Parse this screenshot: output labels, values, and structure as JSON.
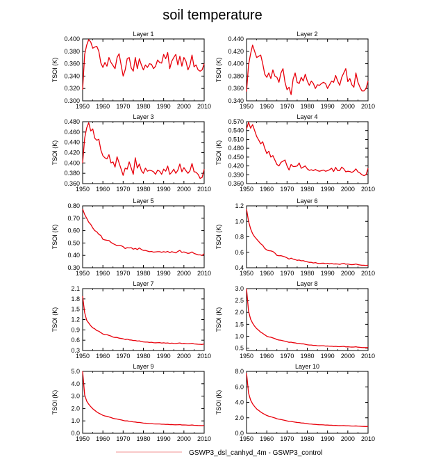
{
  "figure": {
    "title": "soil temperature",
    "legend_label": "GSWP3_dsl_canhyd_4m - GSWP3_control",
    "series_color": "#e8000b",
    "legend_color": "#f4a7a7"
  },
  "chart_data": [
    {
      "type": "line",
      "title": "Layer 1",
      "xlabel": "",
      "ylabel": "TSOI  (K)",
      "xlim": [
        1950,
        2010
      ],
      "ylim": [
        0.3,
        0.4
      ],
      "xticks": [
        "1950",
        "1960",
        "1970",
        "1980",
        "1990",
        "2000",
        "2010"
      ],
      "yticks": [
        "0.300",
        "0.320",
        "0.340",
        "0.360",
        "0.380",
        "0.400"
      ],
      "series": [
        {
          "name": "GSWP3_dsl_canhyd_4m - GSWP3_control",
          "x_start": 1950,
          "x_step": 1,
          "values": [
            0.318,
            0.375,
            0.39,
            0.399,
            0.395,
            0.385,
            0.387,
            0.388,
            0.38,
            0.361,
            0.354,
            0.362,
            0.356,
            0.37,
            0.362,
            0.357,
            0.352,
            0.37,
            0.376,
            0.358,
            0.34,
            0.35,
            0.368,
            0.37,
            0.353,
            0.348,
            0.37,
            0.352,
            0.368,
            0.358,
            0.35,
            0.358,
            0.354,
            0.36,
            0.359,
            0.352,
            0.356,
            0.366,
            0.362,
            0.361,
            0.375,
            0.368,
            0.378,
            0.352,
            0.364,
            0.37,
            0.375,
            0.358,
            0.372,
            0.356,
            0.37,
            0.364,
            0.35,
            0.358,
            0.374,
            0.355,
            0.358,
            0.35,
            0.348,
            0.35,
            0.36
          ]
        }
      ]
    },
    {
      "type": "line",
      "title": "Layer 2",
      "xlabel": "",
      "ylabel": "TSOI  (K)",
      "xlim": [
        1950,
        2010
      ],
      "ylim": [
        0.34,
        0.44
      ],
      "xticks": [
        "1950",
        "1960",
        "1970",
        "1980",
        "1990",
        "2000",
        "2010"
      ],
      "yticks": [
        "0.340",
        "0.360",
        "0.380",
        "0.400",
        "0.420",
        "0.440"
      ],
      "series": [
        {
          "name": "GSWP3_dsl_canhyd_4m - GSWP3_control",
          "x_start": 1950,
          "x_step": 1,
          "values": [
            0.355,
            0.398,
            0.416,
            0.43,
            0.42,
            0.41,
            0.412,
            0.414,
            0.4,
            0.383,
            0.378,
            0.385,
            0.376,
            0.39,
            0.38,
            0.378,
            0.37,
            0.385,
            0.392,
            0.37,
            0.358,
            0.362,
            0.35,
            0.375,
            0.385,
            0.37,
            0.368,
            0.378,
            0.372,
            0.383,
            0.372,
            0.365,
            0.372,
            0.368,
            0.36,
            0.366,
            0.365,
            0.368,
            0.37,
            0.368,
            0.36,
            0.366,
            0.372,
            0.37,
            0.381,
            0.372,
            0.365,
            0.378,
            0.385,
            0.392,
            0.371,
            0.376,
            0.366,
            0.362,
            0.385,
            0.37,
            0.362,
            0.356,
            0.356,
            0.36,
            0.372
          ]
        }
      ]
    },
    {
      "type": "line",
      "title": "Layer 3",
      "xlabel": "",
      "ylabel": "TSOI  (K)",
      "xlim": [
        1950,
        2010
      ],
      "ylim": [
        0.36,
        0.48
      ],
      "xticks": [
        "1950",
        "1960",
        "1970",
        "1980",
        "1990",
        "2000",
        "2010"
      ],
      "yticks": [
        "0.360",
        "0.380",
        "0.400",
        "0.420",
        "0.440",
        "0.460",
        "0.480"
      ],
      "series": [
        {
          "name": "GSWP3_dsl_canhyd_4m - GSWP3_control",
          "x_start": 1950,
          "x_step": 1,
          "values": [
            0.4,
            0.448,
            0.468,
            0.478,
            0.462,
            0.466,
            0.448,
            0.444,
            0.446,
            0.425,
            0.414,
            0.41,
            0.408,
            0.416,
            0.4,
            0.402,
            0.392,
            0.412,
            0.4,
            0.388,
            0.376,
            0.39,
            0.388,
            0.402,
            0.39,
            0.378,
            0.41,
            0.39,
            0.398,
            0.385,
            0.38,
            0.39,
            0.384,
            0.386,
            0.385,
            0.383,
            0.378,
            0.386,
            0.384,
            0.378,
            0.388,
            0.384,
            0.394,
            0.378,
            0.382,
            0.388,
            0.38,
            0.386,
            0.398,
            0.383,
            0.391,
            0.385,
            0.38,
            0.385,
            0.399,
            0.383,
            0.382,
            0.378,
            0.37,
            0.372,
            0.388
          ]
        }
      ]
    },
    {
      "type": "line",
      "title": "Layer 4",
      "xlabel": "",
      "ylabel": "TSOI  (K)",
      "xlim": [
        1950,
        2010
      ],
      "ylim": [
        0.36,
        0.57
      ],
      "xticks": [
        "1950",
        "1960",
        "1970",
        "1980",
        "1990",
        "2000",
        "2010"
      ],
      "yticks": [
        "0.360",
        "0.390",
        "0.420",
        "0.450",
        "0.480",
        "0.510",
        "0.540",
        "0.570"
      ],
      "series": [
        {
          "name": "GSWP3_dsl_canhyd_4m - GSWP3_control",
          "x_start": 1950,
          "x_step": 1,
          "values": [
            0.545,
            0.568,
            0.548,
            0.56,
            0.54,
            0.52,
            0.508,
            0.495,
            0.502,
            0.48,
            0.462,
            0.47,
            0.45,
            0.455,
            0.44,
            0.425,
            0.42,
            0.432,
            0.436,
            0.44,
            0.42,
            0.406,
            0.425,
            0.418,
            0.418,
            0.42,
            0.43,
            0.412,
            0.416,
            0.42,
            0.41,
            0.405,
            0.407,
            0.404,
            0.408,
            0.404,
            0.402,
            0.404,
            0.406,
            0.402,
            0.404,
            0.407,
            0.412,
            0.401,
            0.415,
            0.404,
            0.404,
            0.416,
            0.41,
            0.4,
            0.402,
            0.401,
            0.398,
            0.402,
            0.41,
            0.4,
            0.396,
            0.39,
            0.387,
            0.39,
            0.412
          ]
        }
      ]
    },
    {
      "type": "line",
      "title": "Layer 5",
      "xlabel": "",
      "ylabel": "TSOI  (K)",
      "xlim": [
        1950,
        2010
      ],
      "ylim": [
        0.3,
        0.8
      ],
      "xticks": [
        "1950",
        "1960",
        "1970",
        "1980",
        "1990",
        "2000",
        "2010"
      ],
      "yticks": [
        "0.30",
        "0.40",
        "0.50",
        "0.60",
        "0.70",
        "0.80"
      ],
      "series": [
        {
          "name": "GSWP3_dsl_canhyd_4m - GSWP3_control",
          "x_start": 1950,
          "x_step": 1,
          "values": [
            0.775,
            0.73,
            0.7,
            0.668,
            0.65,
            0.622,
            0.6,
            0.59,
            0.57,
            0.56,
            0.53,
            0.525,
            0.522,
            0.52,
            0.505,
            0.495,
            0.487,
            0.478,
            0.48,
            0.478,
            0.47,
            0.455,
            0.462,
            0.46,
            0.462,
            0.45,
            0.456,
            0.447,
            0.46,
            0.448,
            0.44,
            0.44,
            0.435,
            0.43,
            0.432,
            0.426,
            0.428,
            0.43,
            0.43,
            0.425,
            0.43,
            0.426,
            0.432,
            0.422,
            0.43,
            0.425,
            0.42,
            0.432,
            0.44,
            0.424,
            0.428,
            0.422,
            0.416,
            0.419,
            0.428,
            0.416,
            0.41,
            0.404,
            0.404,
            0.4,
            0.414
          ]
        }
      ]
    },
    {
      "type": "line",
      "title": "Layer 6",
      "xlabel": "",
      "ylabel": "TSOI  (K)",
      "xlim": [
        1950,
        2010
      ],
      "ylim": [
        0.4,
        1.2
      ],
      "xticks": [
        "1950",
        "1960",
        "1970",
        "1980",
        "1990",
        "2000",
        "2010"
      ],
      "yticks": [
        "0.4",
        "0.6",
        "0.8",
        "1.0",
        "1.2"
      ],
      "series": [
        {
          "name": "GSWP3_dsl_canhyd_4m - GSWP3_control",
          "x_start": 1950,
          "x_step": 1,
          "values": [
            1.16,
            1.0,
            0.905,
            0.84,
            0.8,
            0.77,
            0.74,
            0.71,
            0.69,
            0.65,
            0.63,
            0.62,
            0.618,
            0.61,
            0.59,
            0.56,
            0.555,
            0.556,
            0.548,
            0.54,
            0.528,
            0.512,
            0.524,
            0.512,
            0.505,
            0.496,
            0.5,
            0.49,
            0.492,
            0.482,
            0.476,
            0.47,
            0.47,
            0.462,
            0.466,
            0.458,
            0.455,
            0.458,
            0.459,
            0.453,
            0.456,
            0.45,
            0.455,
            0.448,
            0.45,
            0.448,
            0.444,
            0.452,
            0.456,
            0.446,
            0.448,
            0.443,
            0.44,
            0.442,
            0.448,
            0.44,
            0.436,
            0.432,
            0.432,
            0.428,
            0.434
          ]
        }
      ]
    },
    {
      "type": "line",
      "title": "Layer 7",
      "xlabel": "",
      "ylabel": "TSOI  (K)",
      "xlim": [
        1950,
        2010
      ],
      "ylim": [
        0.3,
        2.1
      ],
      "xticks": [
        "1950",
        "1960",
        "1970",
        "1980",
        "1990",
        "2000",
        "2010"
      ],
      "yticks": [
        "0.3",
        "0.6",
        "0.9",
        "1.2",
        "1.5",
        "1.8",
        "2.1"
      ],
      "series": [
        {
          "name": "GSWP3_dsl_canhyd_4m - GSWP3_control",
          "x_start": 1950,
          "x_step": 1,
          "values": [
            1.88,
            1.4,
            1.18,
            1.1,
            1.02,
            0.96,
            0.93,
            0.88,
            0.86,
            0.82,
            0.78,
            0.76,
            0.76,
            0.74,
            0.72,
            0.69,
            0.68,
            0.68,
            0.66,
            0.65,
            0.64,
            0.62,
            0.63,
            0.61,
            0.605,
            0.59,
            0.59,
            0.575,
            0.58,
            0.56,
            0.55,
            0.545,
            0.545,
            0.535,
            0.54,
            0.528,
            0.524,
            0.528,
            0.53,
            0.518,
            0.524,
            0.515,
            0.52,
            0.508,
            0.515,
            0.508,
            0.505,
            0.512,
            0.52,
            0.5,
            0.506,
            0.5,
            0.495,
            0.498,
            0.51,
            0.492,
            0.488,
            0.482,
            0.48,
            0.476,
            0.49
          ]
        }
      ]
    },
    {
      "type": "line",
      "title": "Layer 8",
      "xlabel": "",
      "ylabel": "TSOI  (K)",
      "xlim": [
        1950,
        2010
      ],
      "ylim": [
        0.4,
        3.0
      ],
      "xticks": [
        "1950",
        "1960",
        "1970",
        "1980",
        "1990",
        "2000",
        "2010"
      ],
      "yticks": [
        "0.5",
        "1.0",
        "1.5",
        "2.0",
        "2.5",
        "3.0"
      ],
      "series": [
        {
          "name": "GSWP3_dsl_canhyd_4m - GSWP3_control",
          "x_start": 1950,
          "x_step": 1,
          "values": [
            3.0,
            2.05,
            1.72,
            1.55,
            1.42,
            1.32,
            1.25,
            1.17,
            1.12,
            1.06,
            1.0,
            0.97,
            0.96,
            0.93,
            0.9,
            0.86,
            0.84,
            0.83,
            0.81,
            0.79,
            0.77,
            0.745,
            0.75,
            0.73,
            0.72,
            0.7,
            0.7,
            0.68,
            0.68,
            0.66,
            0.64,
            0.63,
            0.63,
            0.615,
            0.615,
            0.6,
            0.595,
            0.6,
            0.6,
            0.585,
            0.59,
            0.578,
            0.582,
            0.568,
            0.575,
            0.565,
            0.56,
            0.568,
            0.575,
            0.552,
            0.558,
            0.55,
            0.544,
            0.546,
            0.558,
            0.54,
            0.534,
            0.525,
            0.522,
            0.518,
            0.53
          ]
        }
      ]
    },
    {
      "type": "line",
      "title": "Layer 9",
      "xlabel": "",
      "ylabel": "TSOI  (K)",
      "xlim": [
        1950,
        2010
      ],
      "ylim": [
        0.0,
        5.0
      ],
      "xticks": [
        "1950",
        "1960",
        "1970",
        "1980",
        "1990",
        "2000",
        "2010"
      ],
      "yticks": [
        "0.0",
        "1.0",
        "2.0",
        "3.0",
        "4.0",
        "5.0"
      ],
      "series": [
        {
          "name": "GSWP3_dsl_canhyd_4m - GSWP3_control",
          "x_start": 1950,
          "x_step": 1,
          "values": [
            5.0,
            3.1,
            2.6,
            2.35,
            2.15,
            1.98,
            1.85,
            1.72,
            1.62,
            1.54,
            1.45,
            1.4,
            1.37,
            1.32,
            1.27,
            1.21,
            1.17,
            1.15,
            1.11,
            1.08,
            1.04,
            1.0,
            1.0,
            0.97,
            0.95,
            0.92,
            0.91,
            0.88,
            0.88,
            0.85,
            0.82,
            0.81,
            0.8,
            0.78,
            0.78,
            0.76,
            0.75,
            0.75,
            0.75,
            0.73,
            0.73,
            0.715,
            0.72,
            0.7,
            0.705,
            0.69,
            0.685,
            0.69,
            0.7,
            0.67,
            0.675,
            0.665,
            0.655,
            0.655,
            0.67,
            0.648,
            0.64,
            0.628,
            0.622,
            0.615,
            0.63
          ]
        }
      ]
    },
    {
      "type": "line",
      "title": "Layer 10",
      "xlabel": "",
      "ylabel": "TSOI  (K)",
      "xlim": [
        1950,
        2010
      ],
      "ylim": [
        0.0,
        8.0
      ],
      "xticks": [
        "1950",
        "1960",
        "1970",
        "1980",
        "1990",
        "2000",
        "2010"
      ],
      "yticks": [
        "0.0",
        "2.0",
        "4.0",
        "6.0",
        "8.0"
      ],
      "series": [
        {
          "name": "GSWP3_dsl_canhyd_4m - GSWP3_control",
          "x_start": 1950,
          "x_step": 1,
          "values": [
            7.8,
            5.2,
            4.3,
            3.8,
            3.45,
            3.15,
            2.95,
            2.75,
            2.58,
            2.44,
            2.3,
            2.2,
            2.14,
            2.06,
            1.98,
            1.88,
            1.82,
            1.78,
            1.72,
            1.66,
            1.6,
            1.54,
            1.53,
            1.48,
            1.44,
            1.4,
            1.38,
            1.33,
            1.32,
            1.28,
            1.23,
            1.2,
            1.19,
            1.16,
            1.15,
            1.12,
            1.1,
            1.1,
            1.09,
            1.06,
            1.06,
            1.04,
            1.04,
            1.01,
            1.02,
            0.995,
            0.985,
            0.99,
            1.0,
            0.96,
            0.965,
            0.95,
            0.935,
            0.935,
            0.95,
            0.92,
            0.91,
            0.89,
            0.88,
            0.87,
            0.89
          ]
        }
      ]
    }
  ]
}
